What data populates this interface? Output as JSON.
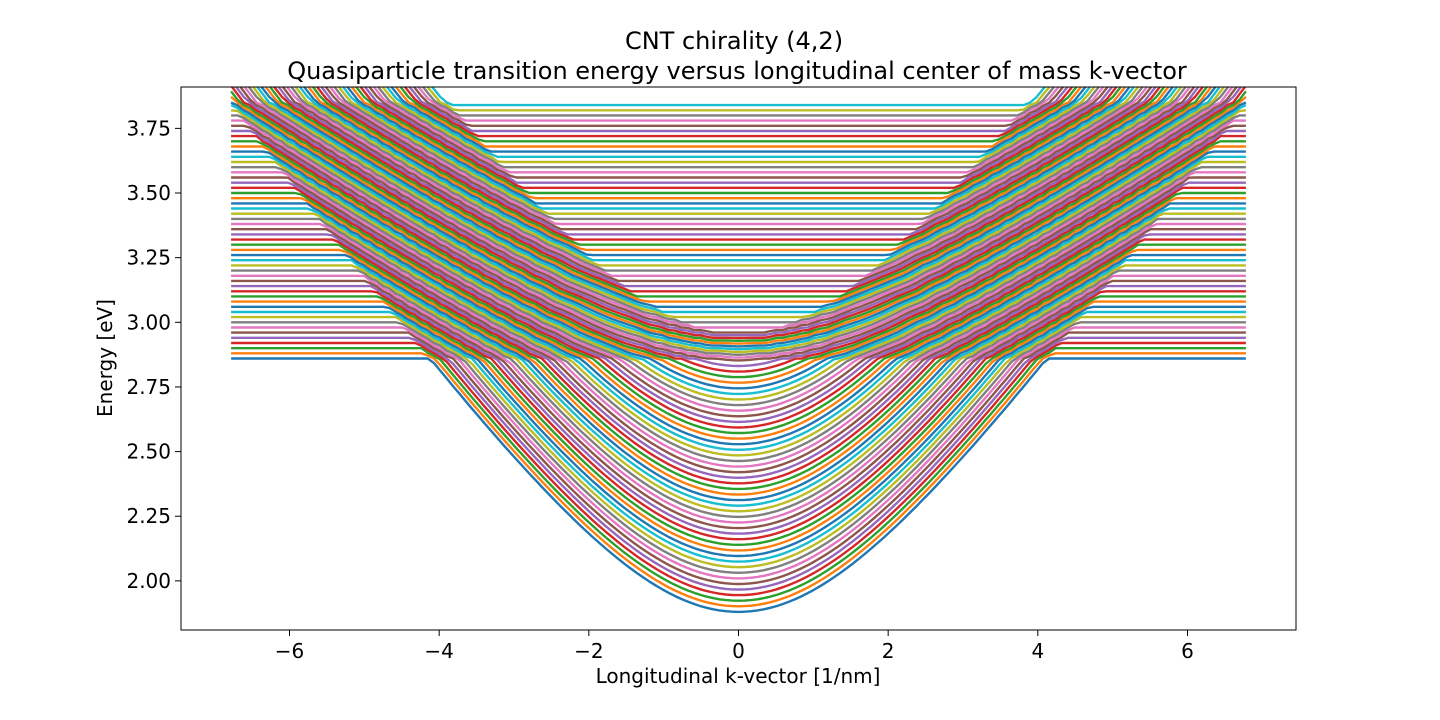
{
  "chart_data": {
    "type": "line",
    "title": "CNT chirality (4,2)",
    "subtitle": "Quasiparticle transition energy versus longitudinal center of mass k-vector",
    "xlabel": "Longitudinal k-vector [1/nm]",
    "ylabel": "Energy [eV]",
    "xlim": [
      -7.45,
      7.45
    ],
    "ylim": [
      1.81,
      3.91
    ],
    "x_ticks": [
      -6,
      -4,
      -2,
      0,
      2,
      4,
      6
    ],
    "x_tick_labels": [
      "−6",
      "−4",
      "−2",
      "0",
      "2",
      "4",
      "6"
    ],
    "y_ticks": [
      2.0,
      2.25,
      2.5,
      2.75,
      3.0,
      3.25,
      3.5,
      3.75
    ],
    "y_tick_labels": [
      "2.00",
      "2.25",
      "2.50",
      "2.75",
      "3.00",
      "3.25",
      "3.50",
      "3.75"
    ],
    "grid": false,
    "legend": "none",
    "x_range": [
      -6.78,
      6.78
    ],
    "band_count": 100,
    "bottom_band": {
      "min_energy": 1.88,
      "energy_at_x_edge": 3.85,
      "vertex_k": 0
    },
    "top_band_minimum": 2.95,
    "flat_band_range": [
      2.86,
      3.85
    ],
    "crossing_minima_k": [
      -3.6,
      3.6
    ],
    "crossing_minimum_energy": 2.87,
    "series_colors": [
      "#1f77b4",
      "#ff7f0e",
      "#2ca02c",
      "#d62728",
      "#9467bd",
      "#8c564b",
      "#e377c2",
      "#7f7f7f",
      "#bcbd22",
      "#17becf"
    ]
  }
}
